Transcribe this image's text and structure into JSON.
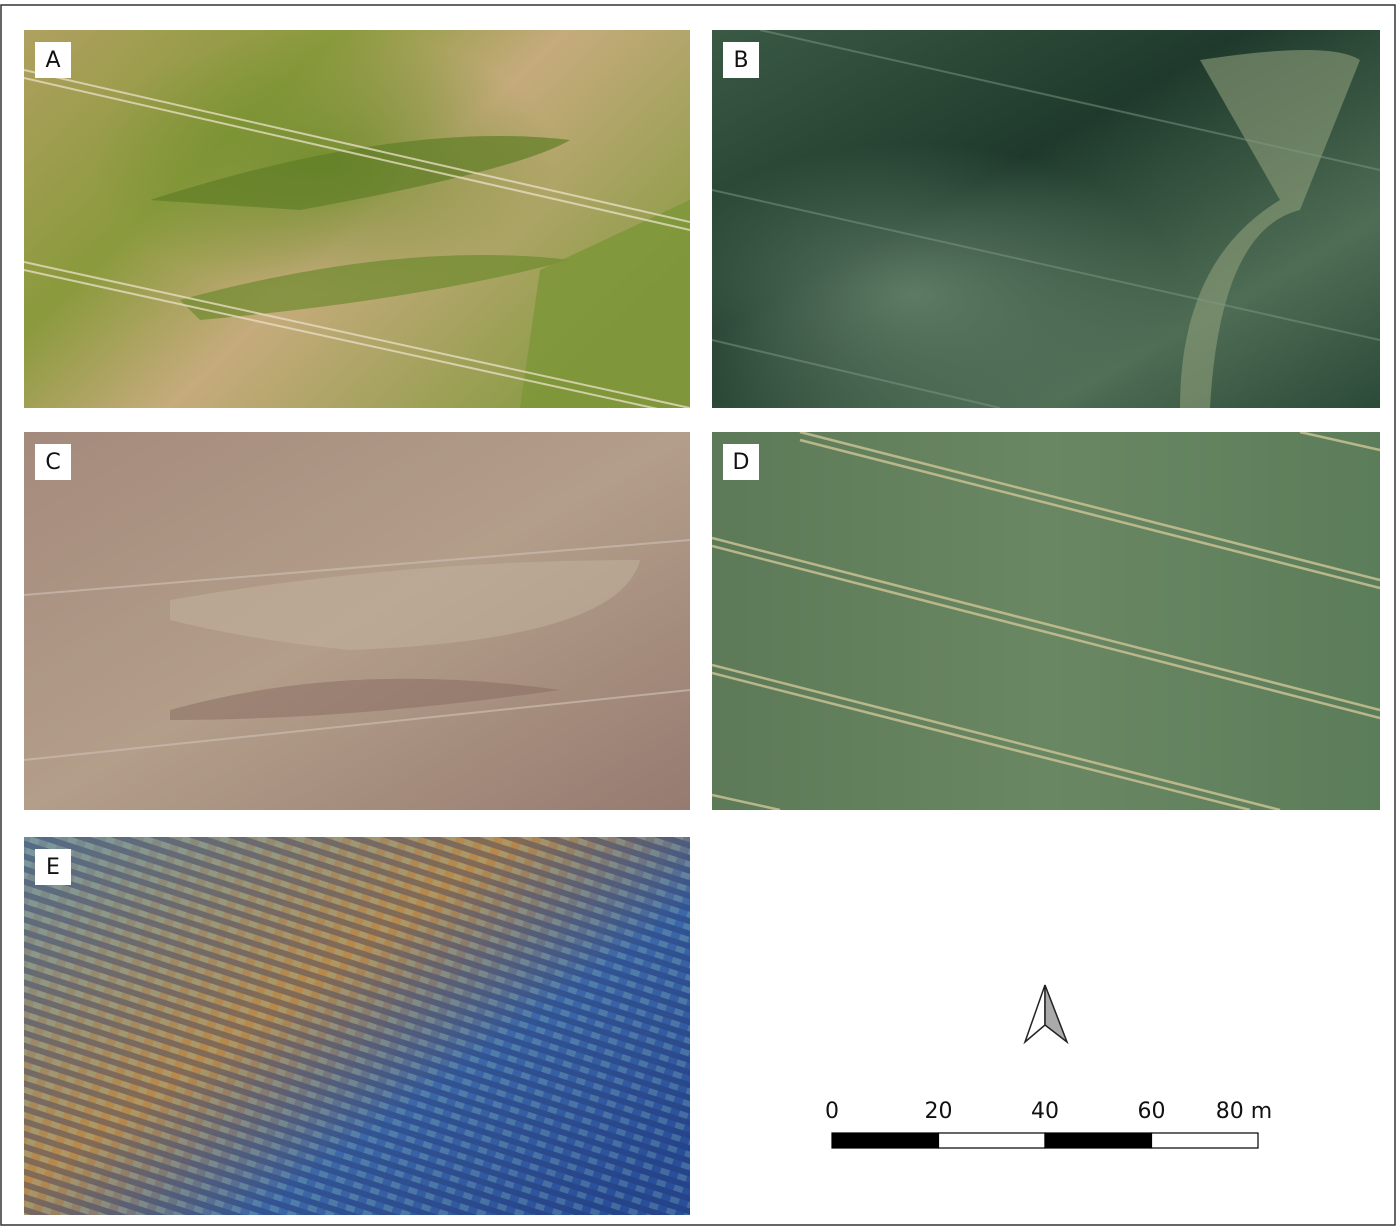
{
  "panels": [
    {
      "label": "A"
    },
    {
      "label": "B"
    },
    {
      "label": "C"
    },
    {
      "label": "D"
    },
    {
      "label": "E"
    }
  ],
  "scale_bar": {
    "ticks": [
      0,
      20,
      40,
      60,
      {
        "value": 80,
        "label": "80 m"
      }
    ]
  }
}
